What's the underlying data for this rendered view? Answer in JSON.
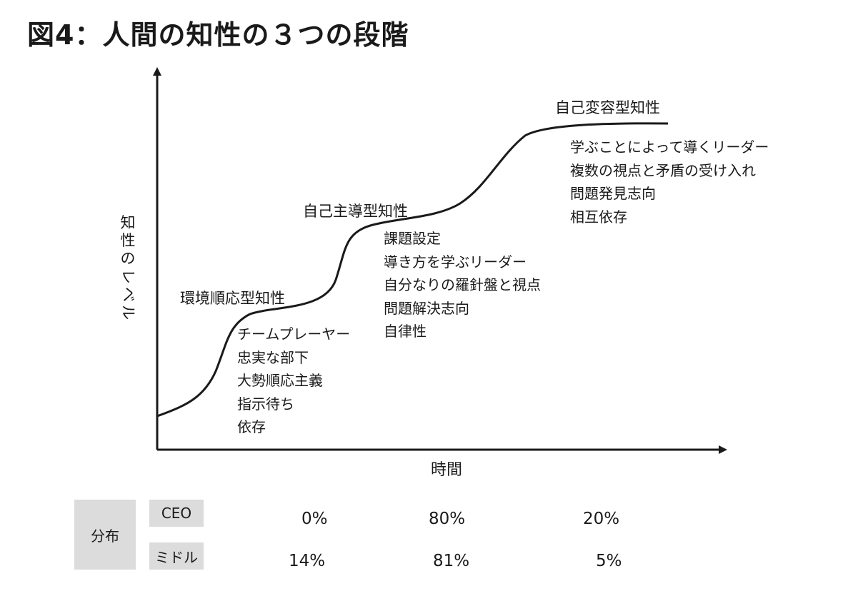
{
  "title": "図4：人間の知性の３つの段階",
  "axes": {
    "y_label_chars": [
      "知",
      "性",
      "の",
      "レ",
      "ベ",
      "ル"
    ],
    "x_label": "時間"
  },
  "stages": [
    {
      "name": "環境順応型知性",
      "traits": [
        "チームプレーヤー",
        "忠実な部下",
        "大勢順応主義",
        "指示待ち",
        "依存"
      ]
    },
    {
      "name": "自己主導型知性",
      "traits": [
        "課題設定",
        "導き方を学ぶリーダー",
        "自分なりの羅針盤と視点",
        "問題解決志向",
        "自律性"
      ]
    },
    {
      "name": "自己変容型知性",
      "traits": [
        "学ぶことによって導くリーダー",
        "複数の視点と矛盾の受け入れ",
        "問題発見志向",
        "相互依存"
      ]
    }
  ],
  "distribution": {
    "label": "分布",
    "rows": [
      {
        "group": "CEO",
        "values": [
          "0%",
          "80%",
          "20%"
        ]
      },
      {
        "group": "ミドル",
        "values": [
          "14%",
          "81%",
          "5%"
        ]
      }
    ]
  }
}
